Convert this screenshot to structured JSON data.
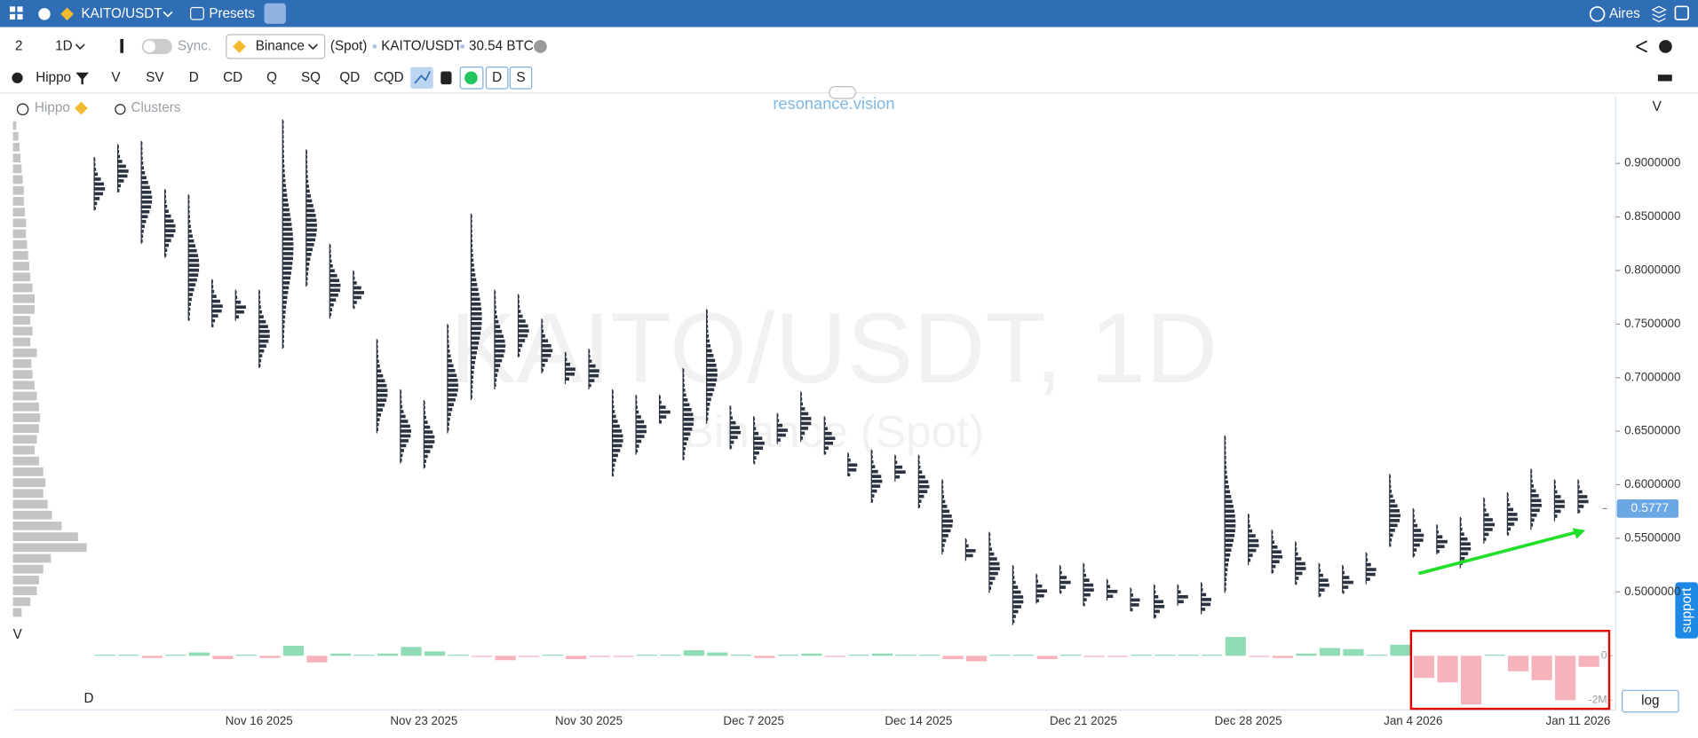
{
  "top_bar": {
    "symbol": "KAITO/USDT",
    "presets": "Presets",
    "user": "Aires"
  },
  "settings_bar": {
    "layout": "2",
    "interval": "1D",
    "sync": "Sync.",
    "exchange": "Binance",
    "market": "(Spot)",
    "symbol": "KAITO/USDT",
    "volume": "30.54 BTC"
  },
  "indicator_bar": {
    "preset": "Hippo",
    "indicators": [
      "V",
      "SV",
      "D",
      "CD",
      "Q",
      "SQ",
      "QD",
      "CQD"
    ],
    "buttons": [
      "D",
      "S"
    ]
  },
  "overlay": {
    "hippo": "Hippo",
    "clusters": "Clusters",
    "brand": "resonance.vision",
    "watermark": "KAITO/USDT, 1D",
    "watermark_sub": "Binance (Spot)",
    "axis_label": "V",
    "profile_label": "V",
    "delta_label": "D",
    "log_button": "log",
    "support": "support"
  },
  "chart_data": {
    "type": "cluster",
    "categories": [
      null,
      null,
      null,
      null,
      null,
      null,
      null,
      "Nov 16 2025",
      null,
      null,
      null,
      null,
      null,
      null,
      "Nov 23 2025",
      null,
      null,
      null,
      null,
      null,
      null,
      "Nov 30 2025",
      null,
      null,
      null,
      null,
      null,
      null,
      "Dec 7 2025",
      null,
      null,
      null,
      null,
      null,
      null,
      "Dec 14 2025",
      null,
      null,
      null,
      null,
      null,
      null,
      "Dec 21 2025",
      null,
      null,
      null,
      null,
      null,
      null,
      "Dec 28 2025",
      null,
      null,
      null,
      null,
      null,
      null,
      "Jan 4 2026",
      null,
      null,
      null,
      null,
      null,
      null,
      "Jan 11 2026"
    ],
    "high": [
      0.906,
      0.918,
      0.921,
      0.876,
      0.871,
      0.792,
      0.782,
      0.782,
      0.941,
      0.913,
      0.825,
      0.8,
      0.736,
      0.689,
      0.679,
      0.75,
      0.853,
      0.782,
      0.778,
      0.755,
      0.724,
      0.727,
      0.689,
      0.684,
      0.684,
      0.709,
      0.764,
      0.674,
      0.664,
      0.667,
      0.687,
      0.664,
      0.63,
      0.633,
      0.628,
      0.628,
      0.605,
      0.55,
      0.556,
      0.525,
      0.517,
      0.525,
      0.527,
      0.512,
      0.504,
      0.507,
      0.507,
      0.509,
      0.646,
      0.573,
      0.558,
      0.547,
      0.527,
      0.525,
      0.537,
      0.61,
      0.578,
      0.563,
      0.57,
      0.588,
      0.593,
      0.615,
      0.605,
      0.605
    ],
    "low": [
      0.856,
      0.873,
      0.825,
      0.812,
      0.753,
      0.747,
      0.753,
      0.709,
      0.727,
      0.785,
      0.755,
      0.765,
      0.648,
      0.62,
      0.615,
      0.648,
      0.679,
      0.689,
      0.719,
      0.704,
      0.694,
      0.689,
      0.608,
      0.628,
      0.657,
      0.623,
      0.657,
      0.633,
      0.62,
      0.638,
      0.64,
      0.628,
      0.608,
      0.583,
      0.603,
      0.578,
      0.535,
      0.529,
      0.499,
      0.469,
      0.489,
      0.499,
      0.487,
      0.492,
      0.482,
      0.475,
      0.487,
      0.479,
      0.499,
      0.525,
      0.517,
      0.507,
      0.495,
      0.499,
      0.507,
      0.542,
      0.532,
      0.535,
      0.522,
      0.545,
      0.553,
      0.558,
      0.566,
      0.573
    ],
    "cluster_color": "#2b3340",
    "ylim": [
      0.4666,
      0.9616
    ],
    "yticks": [
      {
        "value": 0.9,
        "label": "0.9000000"
      },
      {
        "value": 0.85,
        "label": "0.8500000"
      },
      {
        "value": 0.8,
        "label": "0.8000000"
      },
      {
        "value": 0.75,
        "label": "0.7500000"
      },
      {
        "value": 0.7,
        "label": "0.7000000"
      },
      {
        "value": 0.65,
        "label": "0.6500000"
      },
      {
        "value": 0.6,
        "label": "0.6000000"
      },
      {
        "value": 0.55,
        "label": "0.5500000"
      },
      {
        "value": 0.5,
        "label": "0.5000000"
      }
    ],
    "last_price": 0.5777,
    "delta": [
      50000,
      50000,
      -100000,
      50000,
      150000,
      -150000,
      50000,
      -100000,
      450000,
      -300000,
      100000,
      0,
      100000,
      400000,
      200000,
      0,
      -50000,
      -200000,
      -50000,
      50000,
      -150000,
      -50000,
      -50000,
      0,
      0,
      250000,
      150000,
      50000,
      -100000,
      50000,
      100000,
      -50000,
      0,
      100000,
      50000,
      0,
      -150000,
      -250000,
      50000,
      50000,
      -150000,
      50000,
      -50000,
      -50000,
      0,
      0,
      0,
      0,
      850000,
      -50000,
      -100000,
      100000,
      350000,
      300000,
      0,
      500000,
      -1000000,
      -1200000,
      -2200000,
      0,
      -700000,
      -1100000,
      -2000000,
      -500000
    ],
    "delta_up_color": "#8fdcb5",
    "delta_down_color": "#f7b3bb",
    "y2lim": [
      -2440000,
      1270000
    ],
    "y2ticks": [
      0,
      {
        "value": -2000000,
        "label": "-2M"
      }
    ],
    "volume_profile": [
      3,
      5,
      6,
      7,
      8,
      9,
      10,
      10,
      11,
      12,
      12,
      13,
      14,
      15,
      16,
      18,
      20,
      20,
      16,
      18,
      16,
      22,
      17,
      18,
      20,
      22,
      24,
      25,
      24,
      22,
      20,
      24,
      28,
      30,
      28,
      32,
      36,
      45,
      60,
      68,
      35,
      28,
      24,
      22,
      16,
      8
    ],
    "profile_color": "#c4c4c4"
  }
}
